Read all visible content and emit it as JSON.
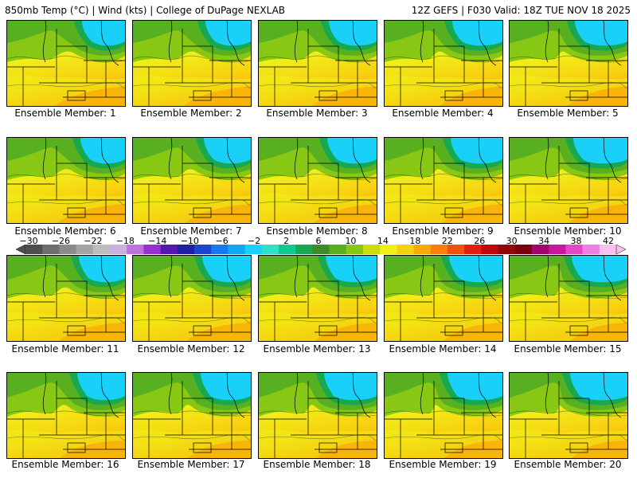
{
  "header": {
    "left": "850mb Temp (°C) | Wind (kts) | College of DuPage NEXLAB",
    "right": "12Z GEFS | F030 Valid: 18Z TUE NOV 18 2025"
  },
  "colorbar": {
    "ticks": [
      "−30",
      "−26",
      "−22",
      "−18",
      "−14",
      "−10",
      "−6",
      "−2",
      "2",
      "6",
      "10",
      "14",
      "18",
      "22",
      "26",
      "30",
      "34",
      "38",
      "42"
    ],
    "colors": [
      "#4e4e4e",
      "#6e6e6e",
      "#8a8a8a",
      "#a5a5a5",
      "#bdbdbd",
      "#cdb0e0",
      "#c070e0",
      "#9a30d0",
      "#5818b0",
      "#2020a0",
      "#1848d0",
      "#1878f0",
      "#10a8f0",
      "#18d0f8",
      "#30e0c8",
      "#10c890",
      "#18a850",
      "#3c8c28",
      "#58b020",
      "#88c814",
      "#c8dc10",
      "#f0f018",
      "#f8d010",
      "#f8a808",
      "#f88008",
      "#f05010",
      "#e02010",
      "#c00808",
      "#900808",
      "#780010",
      "#a00870",
      "#c818a0",
      "#e048c8",
      "#f080e8",
      "#f8c0f0"
    ]
  },
  "members": [
    {
      "caption": "Ensemble Member: 1"
    },
    {
      "caption": "Ensemble Member: 2"
    },
    {
      "caption": "Ensemble Member: 3"
    },
    {
      "caption": "Ensemble Member: 4"
    },
    {
      "caption": "Ensemble Member: 5"
    },
    {
      "caption": "Ensemble Member: 6"
    },
    {
      "caption": "Ensemble Member: 7"
    },
    {
      "caption": "Ensemble Member: 8"
    },
    {
      "caption": "Ensemble Member: 9"
    },
    {
      "caption": "Ensemble Member: 10"
    },
    {
      "caption": "Ensemble Member: 11"
    },
    {
      "caption": "Ensemble Member: 12"
    },
    {
      "caption": "Ensemble Member: 13"
    },
    {
      "caption": "Ensemble Member: 14"
    },
    {
      "caption": "Ensemble Member: 15"
    },
    {
      "caption": "Ensemble Member: 16"
    },
    {
      "caption": "Ensemble Member: 17"
    },
    {
      "caption": "Ensemble Member: 18"
    },
    {
      "caption": "Ensemble Member: 19"
    },
    {
      "caption": "Ensemble Member: 20"
    }
  ]
}
